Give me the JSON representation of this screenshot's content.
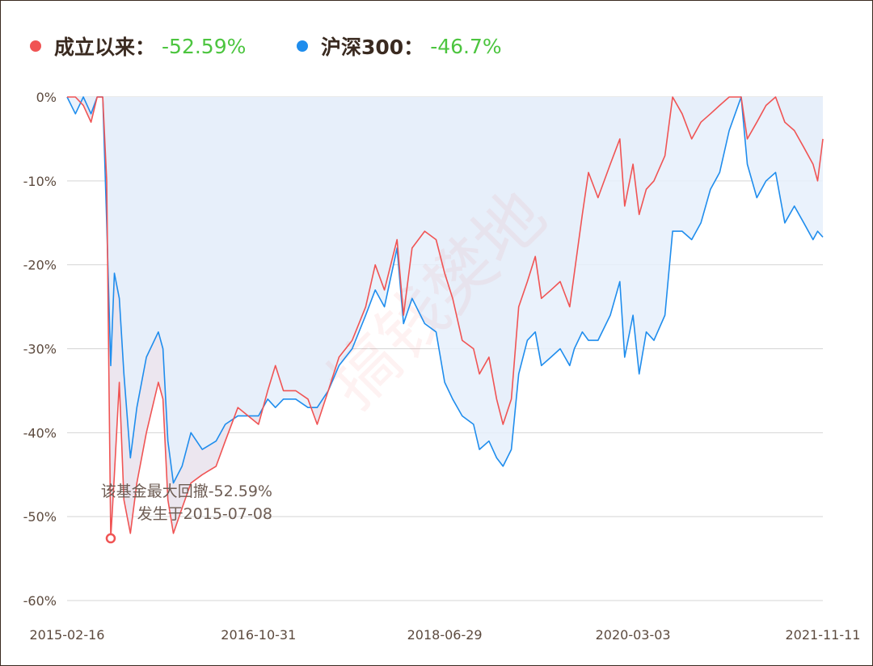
{
  "legend": {
    "fund_label": "成立以来：",
    "fund_value": "-52.59%",
    "index_label": "沪深300：",
    "index_value": "-46.7%"
  },
  "annotation": {
    "line1": "该基金最大回撤-52.59%",
    "line2": "发生于2015-07-08"
  },
  "watermark": "搞钱樊地",
  "colors": {
    "fund": "#f05454",
    "index": "#1f8ded",
    "value_green": "#4cc53f",
    "fund_fill": "#ece6ef",
    "index_fill": "#e6f0fb",
    "axis_text": "#5c4a3e"
  },
  "chart_data": {
    "type": "line",
    "title": "",
    "xlabel": "",
    "ylabel": "",
    "x_tick_labels": [
      "2015-02-16",
      "2016-10-31",
      "2018-06-29",
      "2020-03-03",
      "2021-11-11"
    ],
    "y_tick_labels": [
      "0%",
      "-10%",
      "-20%",
      "-30%",
      "-40%",
      "-50%",
      "-60%"
    ],
    "ylim": [
      -60,
      0
    ],
    "xlim": [
      "2015-02-16",
      "2021-11-11"
    ],
    "grid": true,
    "legend_position": "top-left",
    "max_drawdown": {
      "date": "2015-07-08",
      "value": -52.59
    },
    "series": [
      {
        "name": "成立以来",
        "color": "#f05454",
        "points": [
          [
            "2015-02-16",
            0
          ],
          [
            "2015-03-15",
            0
          ],
          [
            "2015-04-10",
            -1
          ],
          [
            "2015-05-05",
            -3
          ],
          [
            "2015-05-25",
            0
          ],
          [
            "2015-06-12",
            0
          ],
          [
            "2015-06-25",
            -10
          ],
          [
            "2015-07-08",
            -52.59
          ],
          [
            "2015-07-20",
            -45
          ],
          [
            "2015-08-05",
            -34
          ],
          [
            "2015-08-20",
            -48
          ],
          [
            "2015-09-10",
            -52
          ],
          [
            "2015-10-01",
            -46
          ],
          [
            "2015-11-01",
            -40
          ],
          [
            "2015-12-10",
            -34
          ],
          [
            "2015-12-25",
            -36
          ],
          [
            "2016-01-10",
            -48
          ],
          [
            "2016-01-28",
            -52
          ],
          [
            "2016-02-25",
            -49
          ],
          [
            "2016-03-25",
            -46
          ],
          [
            "2016-05-01",
            -45
          ],
          [
            "2016-06-15",
            -44
          ],
          [
            "2016-07-15",
            -41
          ],
          [
            "2016-08-25",
            -37
          ],
          [
            "2016-10-31",
            -39
          ],
          [
            "2016-11-30",
            -35
          ],
          [
            "2016-12-25",
            -32
          ],
          [
            "2017-01-20",
            -35
          ],
          [
            "2017-03-01",
            -35
          ],
          [
            "2017-04-10",
            -36
          ],
          [
            "2017-05-10",
            -39
          ],
          [
            "2017-06-15",
            -35
          ],
          [
            "2017-07-20",
            -31
          ],
          [
            "2017-09-01",
            -29
          ],
          [
            "2017-10-15",
            -25
          ],
          [
            "2017-11-15",
            -20
          ],
          [
            "2017-12-15",
            -23
          ],
          [
            "2018-01-25",
            -17
          ],
          [
            "2018-02-15",
            -26
          ],
          [
            "2018-03-15",
            -18
          ],
          [
            "2018-04-25",
            -16
          ],
          [
            "2018-06-01",
            -17
          ],
          [
            "2018-06-29",
            -21
          ],
          [
            "2018-07-25",
            -24
          ],
          [
            "2018-08-25",
            -29
          ],
          [
            "2018-10-01",
            -30
          ],
          [
            "2018-10-20",
            -33
          ],
          [
            "2018-11-20",
            -31
          ],
          [
            "2018-12-15",
            -36
          ],
          [
            "2019-01-05",
            -39
          ],
          [
            "2019-02-01",
            -36
          ],
          [
            "2019-02-25",
            -25
          ],
          [
            "2019-03-25",
            -22
          ],
          [
            "2019-04-20",
            -19
          ],
          [
            "2019-05-10",
            -24
          ],
          [
            "2019-06-10",
            -23
          ],
          [
            "2019-07-10",
            -22
          ],
          [
            "2019-08-10",
            -25
          ],
          [
            "2019-08-25",
            -21
          ],
          [
            "2019-09-20",
            -14
          ],
          [
            "2019-10-10",
            -9
          ],
          [
            "2019-11-10",
            -12
          ],
          [
            "2019-12-20",
            -8
          ],
          [
            "2020-01-20",
            -5
          ],
          [
            "2020-02-05",
            -13
          ],
          [
            "2020-03-03",
            -8
          ],
          [
            "2020-03-23",
            -14
          ],
          [
            "2020-04-15",
            -11
          ],
          [
            "2020-05-10",
            -10
          ],
          [
            "2020-06-15",
            -7
          ],
          [
            "2020-07-10",
            0
          ],
          [
            "2020-08-10",
            -2
          ],
          [
            "2020-09-10",
            -5
          ],
          [
            "2020-10-10",
            -3
          ],
          [
            "2020-11-10",
            -2
          ],
          [
            "2020-12-10",
            -1
          ],
          [
            "2021-01-10",
            0
          ],
          [
            "2021-02-18",
            0
          ],
          [
            "2021-03-10",
            -5
          ],
          [
            "2021-04-10",
            -3
          ],
          [
            "2021-05-10",
            -1
          ],
          [
            "2021-06-10",
            0
          ],
          [
            "2021-07-10",
            -3
          ],
          [
            "2021-08-10",
            -4
          ],
          [
            "2021-09-10",
            -6
          ],
          [
            "2021-10-10",
            -8
          ],
          [
            "2021-10-25",
            -10
          ],
          [
            "2021-11-11",
            -5
          ]
        ]
      },
      {
        "name": "沪深300",
        "color": "#1f8ded",
        "points": [
          [
            "2015-02-16",
            0
          ],
          [
            "2015-03-15",
            -2
          ],
          [
            "2015-04-10",
            0
          ],
          [
            "2015-05-05",
            -2
          ],
          [
            "2015-05-25",
            0
          ],
          [
            "2015-06-12",
            0
          ],
          [
            "2015-06-25",
            -15
          ],
          [
            "2015-07-08",
            -32
          ],
          [
            "2015-07-20",
            -21
          ],
          [
            "2015-08-05",
            -24
          ],
          [
            "2015-08-20",
            -33
          ],
          [
            "2015-09-10",
            -43
          ],
          [
            "2015-10-01",
            -37
          ],
          [
            "2015-11-01",
            -31
          ],
          [
            "2015-12-10",
            -28
          ],
          [
            "2015-12-25",
            -30
          ],
          [
            "2016-01-10",
            -41
          ],
          [
            "2016-01-28",
            -46
          ],
          [
            "2016-02-25",
            -44
          ],
          [
            "2016-03-25",
            -40
          ],
          [
            "2016-05-01",
            -42
          ],
          [
            "2016-06-15",
            -41
          ],
          [
            "2016-07-15",
            -39
          ],
          [
            "2016-08-25",
            -38
          ],
          [
            "2016-10-31",
            -38
          ],
          [
            "2016-11-30",
            -36
          ],
          [
            "2016-12-25",
            -37
          ],
          [
            "2017-01-20",
            -36
          ],
          [
            "2017-03-01",
            -36
          ],
          [
            "2017-04-10",
            -37
          ],
          [
            "2017-05-10",
            -37
          ],
          [
            "2017-06-15",
            -35
          ],
          [
            "2017-07-20",
            -32
          ],
          [
            "2017-09-01",
            -30
          ],
          [
            "2017-10-15",
            -26
          ],
          [
            "2017-11-15",
            -23
          ],
          [
            "2017-12-15",
            -25
          ],
          [
            "2018-01-25",
            -18
          ],
          [
            "2018-02-15",
            -27
          ],
          [
            "2018-03-15",
            -24
          ],
          [
            "2018-04-25",
            -27
          ],
          [
            "2018-06-01",
            -28
          ],
          [
            "2018-06-29",
            -34
          ],
          [
            "2018-07-25",
            -36
          ],
          [
            "2018-08-25",
            -38
          ],
          [
            "2018-10-01",
            -39
          ],
          [
            "2018-10-20",
            -42
          ],
          [
            "2018-11-20",
            -41
          ],
          [
            "2018-12-15",
            -43
          ],
          [
            "2019-01-05",
            -44
          ],
          [
            "2019-02-01",
            -42
          ],
          [
            "2019-02-25",
            -33
          ],
          [
            "2019-03-25",
            -29
          ],
          [
            "2019-04-20",
            -28
          ],
          [
            "2019-05-10",
            -32
          ],
          [
            "2019-06-10",
            -31
          ],
          [
            "2019-07-10",
            -30
          ],
          [
            "2019-08-10",
            -32
          ],
          [
            "2019-08-25",
            -30
          ],
          [
            "2019-09-20",
            -28
          ],
          [
            "2019-10-10",
            -29
          ],
          [
            "2019-11-10",
            -29
          ],
          [
            "2019-12-20",
            -26
          ],
          [
            "2020-01-20",
            -22
          ],
          [
            "2020-02-05",
            -31
          ],
          [
            "2020-03-03",
            -26
          ],
          [
            "2020-03-23",
            -33
          ],
          [
            "2020-04-15",
            -28
          ],
          [
            "2020-05-10",
            -29
          ],
          [
            "2020-06-15",
            -26
          ],
          [
            "2020-07-10",
            -16
          ],
          [
            "2020-08-10",
            -16
          ],
          [
            "2020-09-10",
            -17
          ],
          [
            "2020-10-10",
            -15
          ],
          [
            "2020-11-10",
            -11
          ],
          [
            "2020-12-10",
            -9
          ],
          [
            "2021-01-10",
            -4
          ],
          [
            "2021-02-18",
            0
          ],
          [
            "2021-03-10",
            -8
          ],
          [
            "2021-04-10",
            -12
          ],
          [
            "2021-05-10",
            -10
          ],
          [
            "2021-06-10",
            -9
          ],
          [
            "2021-07-10",
            -15
          ],
          [
            "2021-08-10",
            -13
          ],
          [
            "2021-09-10",
            -15
          ],
          [
            "2021-10-10",
            -17
          ],
          [
            "2021-10-25",
            -16
          ],
          [
            "2021-11-11",
            -16.7
          ]
        ]
      }
    ]
  }
}
